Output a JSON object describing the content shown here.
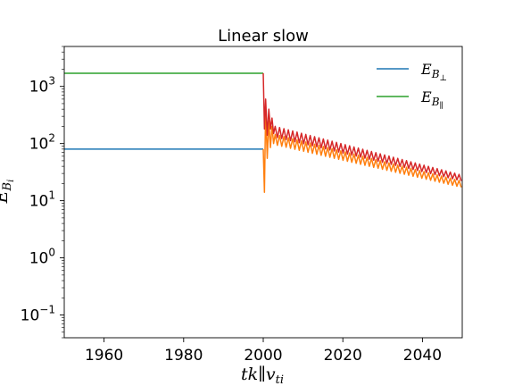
{
  "chart_data": {
    "type": "line",
    "title": "Linear slow",
    "xlabel": "tk∥v",
    "xlabel_sub": "ti",
    "ylabel": "E",
    "ylabel_sub": "B",
    "ylabel_subsub": "i",
    "xlim": [
      1950,
      2050
    ],
    "ylim": [
      0.04,
      5000
    ],
    "yscale": "log",
    "grid": false,
    "legend_position": "top-right",
    "xticks": [
      {
        "value": 1960,
        "label": "1960"
      },
      {
        "value": 1980,
        "label": "1980"
      },
      {
        "value": 2000,
        "label": "2000"
      },
      {
        "value": 2020,
        "label": "2020"
      },
      {
        "value": 2040,
        "label": "2040"
      }
    ],
    "yticks": [
      {
        "value": 0.1,
        "base": "10",
        "exp": "−1"
      },
      {
        "value": 1,
        "base": "10",
        "exp": "0"
      },
      {
        "value": 10,
        "base": "10",
        "exp": "1"
      },
      {
        "value": 100,
        "base": "10",
        "exp": "2"
      },
      {
        "value": 1000,
        "base": "10",
        "exp": "3"
      }
    ],
    "series": [
      {
        "name": "E_B⊥",
        "legend_main": "E",
        "legend_sub": "B",
        "legend_subsub": "⊥",
        "color": "#1f77b4",
        "in_legend": true,
        "points": [
          [
            1950,
            80
          ],
          [
            2000,
            80
          ]
        ]
      },
      {
        "name": "E_B∥",
        "legend_main": "E",
        "legend_sub": "B",
        "legend_subsub": "∥",
        "color": "#2ca02c",
        "in_legend": true,
        "points": [
          [
            1950,
            1700
          ],
          [
            2000,
            1700
          ]
        ]
      },
      {
        "color": "#ff7f0e",
        "in_legend": false,
        "oscillation": {
          "x_start": 2000,
          "x_end": 2050,
          "initial_points": [
            [
              2000,
              80
            ],
            [
              2000.3,
              14
            ],
            [
              2000.6,
              400
            ],
            [
              2001,
              55
            ],
            [
              2001.4,
              250
            ],
            [
              2001.8,
              85
            ],
            [
              2002.2,
              200
            ],
            [
              2002.6,
              100
            ]
          ],
          "envelope_start": {
            "x": 2003,
            "low": 95,
            "high": 145
          },
          "envelope_end": {
            "x": 2050,
            "low": 17,
            "high": 22
          },
          "period": 1.1
        }
      },
      {
        "color": "#d62728",
        "in_legend": false,
        "oscillation": {
          "x_start": 2000,
          "x_end": 2050,
          "initial_points": [
            [
              2000,
              1700
            ],
            [
              2000.3,
              180
            ],
            [
              2000.6,
              600
            ],
            [
              2001,
              140
            ],
            [
              2001.4,
              400
            ],
            [
              2001.8,
              180
            ],
            [
              2002.2,
              280
            ],
            [
              2002.6,
              150
            ]
          ],
          "envelope_start": {
            "x": 2003,
            "low": 130,
            "high": 200
          },
          "envelope_end": {
            "x": 2050,
            "low": 22,
            "high": 28
          },
          "period": 1.1
        }
      }
    ]
  }
}
